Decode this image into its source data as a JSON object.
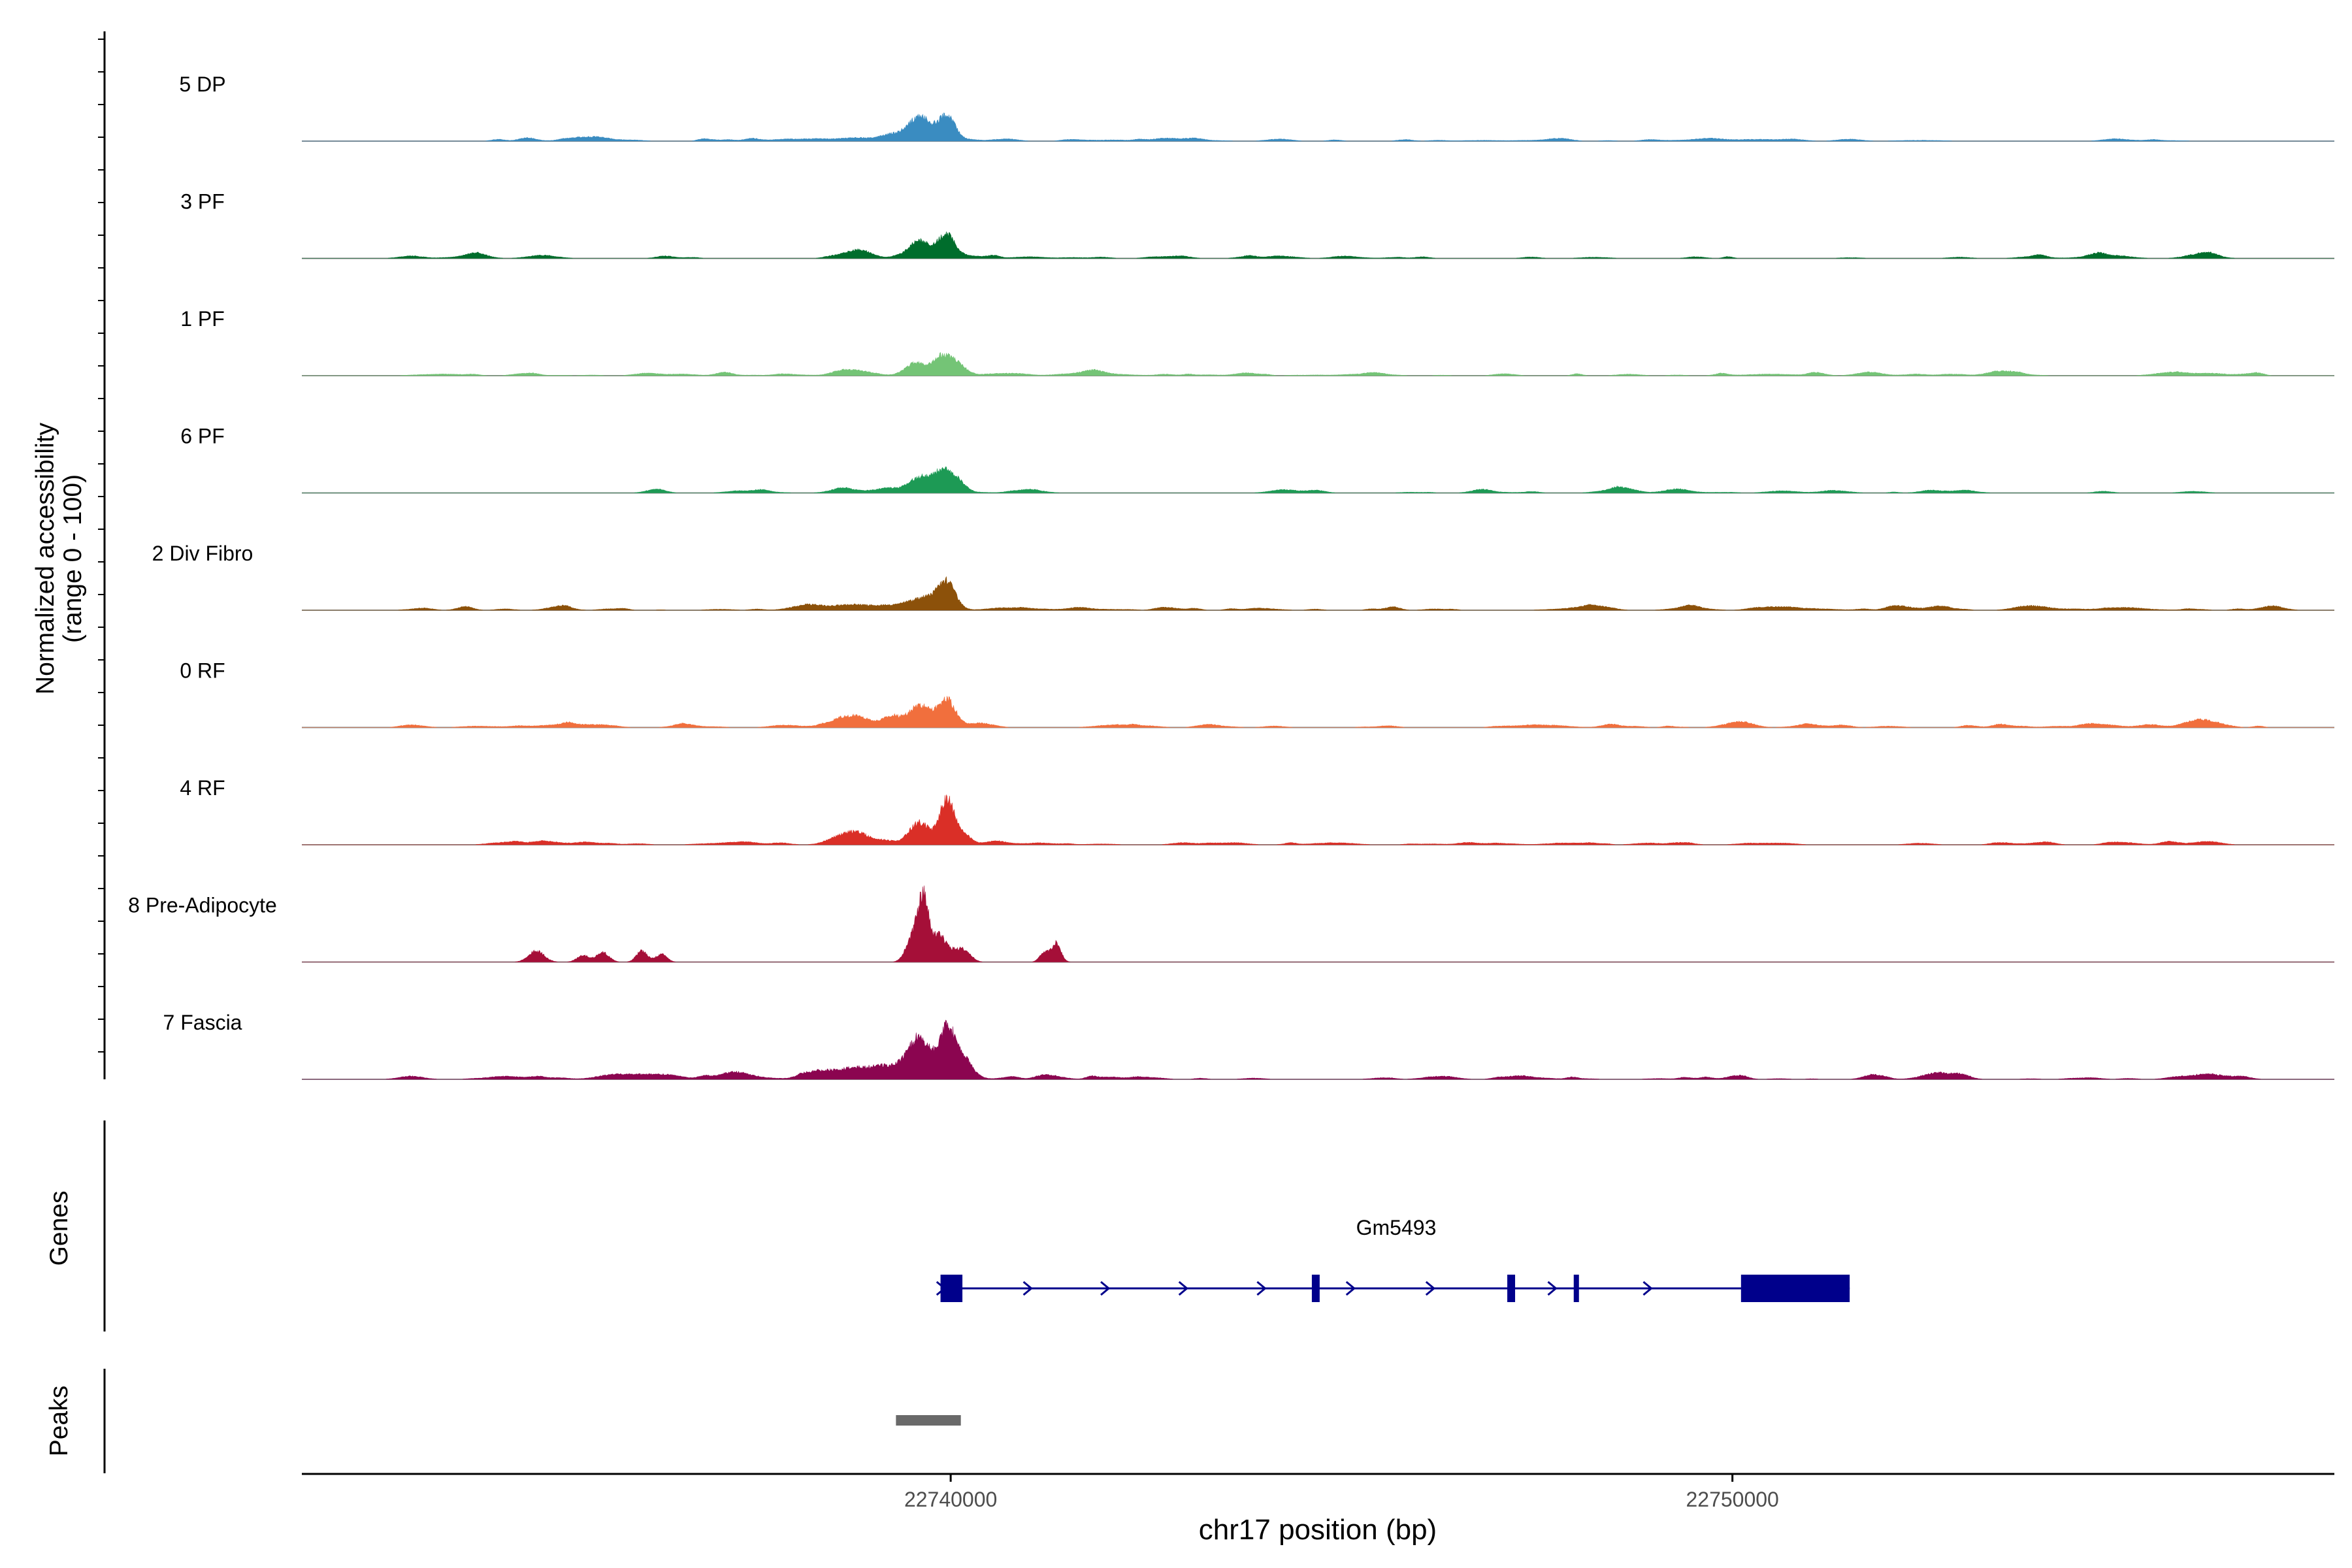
{
  "chart_data": {
    "type": "area",
    "title": "",
    "chromosome": "chr17",
    "xlabel": "chr17 position (bp)",
    "xlim": [
      22731700,
      22757700
    ],
    "x_ticks": [
      22740000,
      22750000
    ],
    "x_tick_labels": [
      "22740000",
      "22750000"
    ],
    "y_axis_label": [
      "Normalized accessibility",
      "(range 0 - 100)"
    ],
    "ylim": [
      0,
      100
    ],
    "series": [
      {
        "name": "5 DP",
        "color": "#3A8CC1",
        "peaks": [
          [
            22739600,
            130,
            28
          ],
          [
            22739950,
            110,
            32
          ],
          [
            22739250,
            200,
            8
          ],
          [
            22738200,
            350,
            2
          ],
          [
            22735500,
            300,
            1
          ],
          [
            22743200,
            300,
            1
          ],
          [
            22746800,
            250,
            1
          ],
          [
            22749600,
            300,
            1
          ],
          [
            22752400,
            300,
            1
          ],
          [
            22755300,
            400,
            1
          ]
        ],
        "noise": {
          "start": 22733500,
          "end": 22755800,
          "count": 55,
          "max": 2,
          "seed": 11
        }
      },
      {
        "name": "3 PF",
        "color": "#006D2C",
        "peaks": [
          [
            22739600,
            140,
            22
          ],
          [
            22739950,
            110,
            30
          ],
          [
            22738800,
            180,
            8
          ],
          [
            22756000,
            180,
            6
          ],
          [
            22733100,
            150,
            3
          ],
          [
            22741000,
            200,
            2
          ]
        ],
        "noise": {
          "start": 22733000,
          "end": 22756200,
          "count": 55,
          "max": 2,
          "seed": 23
        }
      },
      {
        "name": "1 PF",
        "color": "#74C476",
        "peaks": [
          [
            22739550,
            130,
            16
          ],
          [
            22739900,
            110,
            22
          ],
          [
            22740100,
            100,
            10
          ],
          [
            22738800,
            200,
            3
          ],
          [
            22733500,
            300,
            2
          ],
          [
            22742000,
            300,
            2
          ],
          [
            22745300,
            300,
            2
          ],
          [
            22750500,
            300,
            2
          ],
          [
            22753500,
            300,
            2
          ],
          [
            22756000,
            300,
            2
          ]
        ],
        "noise": {
          "start": 22733000,
          "end": 22756800,
          "count": 70,
          "max": 2,
          "seed": 37
        }
      },
      {
        "name": "6 PF",
        "color": "#1D9A55",
        "peaks": [
          [
            22739600,
            140,
            18
          ],
          [
            22739900,
            120,
            26
          ],
          [
            22740100,
            100,
            12
          ],
          [
            22739200,
            150,
            6
          ],
          [
            22738700,
            200,
            4
          ],
          [
            22736200,
            120,
            3
          ],
          [
            22737500,
            250,
            2
          ],
          [
            22745900,
            150,
            1
          ],
          [
            22751300,
            200,
            2
          ],
          [
            22752800,
            200,
            2
          ],
          [
            22755900,
            150,
            2
          ]
        ],
        "noise": {
          "start": 22736000,
          "end": 22756000,
          "count": 40,
          "max": 2,
          "seed": 41
        }
      },
      {
        "name": "2 Div Fibro",
        "color": "#8C510A",
        "peaks": [
          [
            22739700,
            200,
            16
          ],
          [
            22739950,
            110,
            30
          ],
          [
            22739200,
            200,
            4
          ],
          [
            22738600,
            300,
            3
          ],
          [
            22741000,
            300,
            2
          ],
          [
            22744000,
            200,
            2
          ],
          [
            22748000,
            300,
            2
          ],
          [
            22751000,
            300,
            2
          ],
          [
            22752200,
            200,
            2
          ],
          [
            22754000,
            200,
            2
          ]
        ],
        "noise": {
          "start": 22733000,
          "end": 22757000,
          "count": 90,
          "max": 2,
          "seed": 53
        }
      },
      {
        "name": "0 RF",
        "color": "#F16F3D",
        "peaks": [
          [
            22739600,
            140,
            26
          ],
          [
            22739950,
            110,
            34
          ],
          [
            22738800,
            150,
            12
          ],
          [
            22738550,
            120,
            8
          ],
          [
            22739250,
            120,
            10
          ],
          [
            22740400,
            150,
            3
          ],
          [
            22750100,
            150,
            3
          ],
          [
            22756100,
            180,
            6
          ],
          [
            22735000,
            200,
            2
          ],
          [
            22742000,
            200,
            2
          ],
          [
            22747700,
            200,
            2
          ]
        ],
        "noise": {
          "start": 22733000,
          "end": 22757000,
          "count": 85,
          "max": 2,
          "seed": 67
        }
      },
      {
        "name": "4 RF",
        "color": "#DA2F27",
        "peaks": [
          [
            22739600,
            130,
            28
          ],
          [
            22739950,
            90,
            54
          ],
          [
            22740150,
            100,
            14
          ],
          [
            22738800,
            150,
            14
          ],
          [
            22738550,
            150,
            8
          ],
          [
            22739150,
            150,
            4
          ],
          [
            22737400,
            150,
            3
          ],
          [
            22734200,
            150,
            2
          ],
          [
            22745000,
            200,
            2
          ],
          [
            22756100,
            150,
            4
          ],
          [
            22752400,
            150,
            2
          ],
          [
            22747800,
            200,
            2
          ]
        ],
        "noise": {
          "start": 22733000,
          "end": 22756300,
          "count": 60,
          "max": 2,
          "seed": 71
        }
      },
      {
        "name": "8 Pre-Adipocyte",
        "color": "#A50F38",
        "peaks": [
          [
            22739650,
            70,
            80
          ],
          [
            22739500,
            80,
            28
          ],
          [
            22739850,
            80,
            32
          ],
          [
            22740050,
            100,
            14
          ],
          [
            22740200,
            80,
            10
          ],
          [
            22741350,
            60,
            24
          ],
          [
            22741200,
            60,
            12
          ],
          [
            22734700,
            100,
            14
          ],
          [
            22735300,
            80,
            8
          ],
          [
            22735550,
            80,
            12
          ],
          [
            22736050,
            70,
            14
          ],
          [
            22736300,
            70,
            10
          ]
        ],
        "noise": {
          "start": 22733500,
          "end": 22741500,
          "count": 0,
          "max": 0,
          "seed": 3
        }
      },
      {
        "name": "7 Fascia",
        "color": "#8B0550",
        "peaks": [
          [
            22739600,
            140,
            48
          ],
          [
            22739950,
            100,
            58
          ],
          [
            22740150,
            120,
            22
          ],
          [
            22739200,
            200,
            14
          ],
          [
            22738700,
            250,
            10
          ],
          [
            22738300,
            200,
            6
          ],
          [
            22737300,
            300,
            4
          ],
          [
            22736000,
            300,
            6
          ],
          [
            22734300,
            200,
            4
          ],
          [
            22733100,
            150,
            4
          ],
          [
            22741300,
            150,
            4
          ],
          [
            22746300,
            150,
            3
          ],
          [
            22751800,
            120,
            6
          ],
          [
            22752600,
            200,
            4
          ],
          [
            22756100,
            250,
            6
          ]
        ],
        "noise": {
          "start": 22733000,
          "end": 22756600,
          "count": 60,
          "max": 3,
          "seed": 89
        }
      }
    ],
    "genes": {
      "label": "Genes",
      "name": "Gm5493",
      "color": "#00008B",
      "start": 22739870,
      "end": 22751500,
      "strand": "+",
      "exons": [
        [
          22739870,
          22740150
        ],
        [
          22744620,
          22744720
        ],
        [
          22747120,
          22747220
        ],
        [
          22747970,
          22748020
        ],
        [
          22750110,
          22751500
        ]
      ],
      "arrows": [
        22739880,
        22740990,
        22741980,
        22742980,
        22743980,
        22745120,
        22746140,
        22747700,
        22748920
      ]
    },
    "peaks": {
      "label": "Peaks",
      "color": "#696969",
      "regions": [
        [
          22739300,
          22740130
        ]
      ]
    }
  }
}
